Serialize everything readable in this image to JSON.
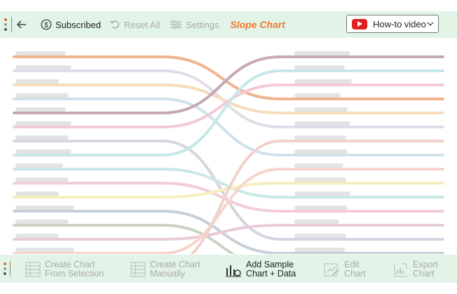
{
  "toolbar": {
    "subscribed_label": "Subscribed",
    "reset_label": "Reset All",
    "settings_label": "Settings",
    "title": "Slope Chart",
    "video_label": "How-to video"
  },
  "bottom": {
    "create_selection": [
      "Create Chart",
      "From Selection"
    ],
    "create_manual": [
      "Create Chart",
      "Manually"
    ],
    "add_sample": [
      "Add Sample",
      "Chart + Data"
    ],
    "edit_chart": [
      "Edit",
      "Chart"
    ],
    "export_chart": [
      "Export",
      "Chart"
    ]
  },
  "colors": {
    "accent": "#f07b2e",
    "bar_bg": "#e2f3e8"
  },
  "chart_data": {
    "type": "line",
    "note_free": true,
    "series": [
      {
        "color": "#efb48f",
        "left_rank": 1,
        "right_rank": 4
      },
      {
        "color": "#e3dce8",
        "left_rank": 2,
        "right_rank": 6
      },
      {
        "color": "#f6dcbb",
        "left_rank": 3,
        "right_rank": 5
      },
      {
        "color": "#cfe2ea",
        "left_rank": 4,
        "right_rank": 8
      },
      {
        "color": "#c6a9b8",
        "left_rank": 5,
        "right_rank": 1
      },
      {
        "color": "#f2c9d4",
        "left_rank": 6,
        "right_rank": 3
      },
      {
        "color": "#d2d7df",
        "left_rank": 7,
        "right_rank": 14
      },
      {
        "color": "#c6e7e8",
        "left_rank": 8,
        "right_rank": 2
      },
      {
        "color": "#c8e8e6",
        "left_rank": 9,
        "right_rank": 11
      },
      {
        "color": "#f2cdd5",
        "left_rank": 10,
        "right_rank": 12
      },
      {
        "color": "#f5eebf",
        "left_rank": 11,
        "right_rank": 10
      },
      {
        "color": "#c6d0d8",
        "left_rank": 12,
        "right_rank": 15
      },
      {
        "color": "#cbd2c2",
        "left_rank": 13,
        "right_rank": 16
      },
      {
        "color": "#e7cbd8",
        "left_rank": 14,
        "right_rank": 13
      },
      {
        "color": "#f6d4cb",
        "left_rank": 15,
        "right_rank": 9
      },
      {
        "color": "#f0d2ca",
        "left_rank": 16,
        "right_rank": 7
      }
    ]
  }
}
